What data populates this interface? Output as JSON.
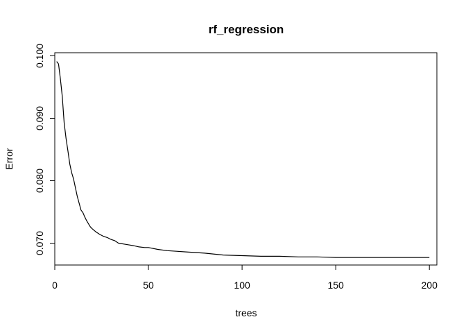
{
  "chart_data": {
    "type": "line",
    "title": "rf_regression",
    "xlabel": "trees",
    "ylabel": "Error",
    "xlim": [
      0,
      204
    ],
    "ylim": [
      0.0665,
      0.1005
    ],
    "grid": false,
    "legend": "none",
    "x_ticks": [
      {
        "value": 0,
        "label": "0"
      },
      {
        "value": 50,
        "label": "50"
      },
      {
        "value": 100,
        "label": "100"
      },
      {
        "value": 150,
        "label": "150"
      },
      {
        "value": 200,
        "label": "200"
      }
    ],
    "y_ticks": [
      {
        "value": 0.07,
        "label": "0.070"
      },
      {
        "value": 0.08,
        "label": "0.080"
      },
      {
        "value": 0.09,
        "label": "0.090"
      },
      {
        "value": 0.1,
        "label": "0.100"
      }
    ],
    "series": [
      {
        "color": "#000000",
        "x": [
          1,
          2,
          3,
          4,
          5,
          6,
          7,
          8,
          9,
          10,
          11,
          12,
          13,
          14,
          15,
          16,
          17,
          18,
          19,
          20,
          22,
          24,
          26,
          28,
          30,
          32,
          34,
          36,
          38,
          40,
          42,
          45,
          48,
          50,
          55,
          60,
          65,
          70,
          75,
          80,
          90,
          100,
          110,
          120,
          130,
          140,
          150,
          160,
          170,
          180,
          190,
          200
        ],
        "y": [
          0.0991,
          0.0987,
          0.0963,
          0.0935,
          0.0893,
          0.0868,
          0.0848,
          0.0827,
          0.0813,
          0.0803,
          0.0789,
          0.0775,
          0.0764,
          0.0753,
          0.0749,
          0.0742,
          0.0736,
          0.0731,
          0.0726,
          0.0723,
          0.0718,
          0.0714,
          0.0711,
          0.0709,
          0.0706,
          0.0704,
          0.07,
          0.0699,
          0.0698,
          0.0697,
          0.0696,
          0.0694,
          0.0693,
          0.0693,
          0.069,
          0.0688,
          0.0687,
          0.0686,
          0.0685,
          0.0684,
          0.0681,
          0.068,
          0.0679,
          0.0679,
          0.0678,
          0.0678,
          0.0677,
          0.0677,
          0.0677,
          0.0677,
          0.0677,
          0.0677
        ]
      }
    ]
  }
}
